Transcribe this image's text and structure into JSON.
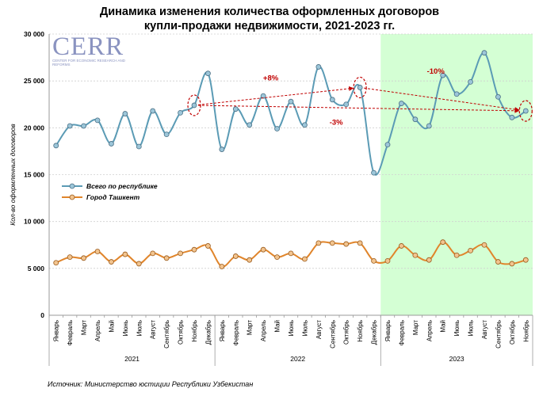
{
  "title_line1": "Динамика изменения количества оформленных договоров",
  "title_line2": "купли-продажи недвижимости, 2021-2023 гг.",
  "logo": {
    "name": "CERR",
    "subtitle": "CENTER FOR ECONOMIC RESEARCH AND REFORMS"
  },
  "source": "Источник: Министерство юстиции Республики Узбекистан",
  "colors": {
    "total": "#5b9bb5",
    "total_marker": "#9cc6d9",
    "tashkent": "#e0852b",
    "tashkent_marker": "#f2c48f",
    "highlight": "#ccffcc",
    "annot": "#c00000"
  },
  "chart_data": {
    "type": "line",
    "ylabel": "Кол-во оформленных договоров",
    "ylim": [
      0,
      30000
    ],
    "yticks": [
      0,
      5000,
      10000,
      15000,
      20000,
      25000,
      30000
    ],
    "ytick_labels": [
      "0",
      "5 000",
      "10 000",
      "15 000",
      "20 000",
      "25 000",
      "30 000"
    ],
    "months": [
      "Январь",
      "Февраль",
      "Март",
      "Апрель",
      "Май",
      "Июнь",
      "Июль",
      "Август",
      "Сентябрь",
      "Октябрь",
      "Ноябрь",
      "Декабрь",
      "Январь",
      "Февраль",
      "Март",
      "Апрель",
      "Май",
      "Июнь",
      "Июль",
      "Август",
      "Сентябрь",
      "Октябрь",
      "Ноябрь",
      "Декабрь",
      "Январь",
      "Февраль",
      "Март",
      "Апрель",
      "Май",
      "Июнь",
      "Июль",
      "Август",
      "Сентябрь",
      "Октябрь",
      "Ноябрь"
    ],
    "years": [
      {
        "label": "2021",
        "start": 0,
        "count": 12
      },
      {
        "label": "2022",
        "start": 12,
        "count": 12
      },
      {
        "label": "2023",
        "start": 24,
        "count": 11
      }
    ],
    "highlight_from": 24,
    "series": [
      {
        "name": "Всего по республике",
        "values": [
          18100,
          20200,
          20200,
          20800,
          18300,
          21500,
          18000,
          21800,
          19300,
          21600,
          22400,
          25800,
          17700,
          22000,
          20300,
          23400,
          19900,
          22800,
          20300,
          26500,
          23000,
          22500,
          24300,
          15200,
          18200,
          22600,
          20900,
          20200,
          25600,
          23600,
          24900,
          28000,
          23300,
          21100,
          21800
        ]
      },
      {
        "name": "Город Ташкент",
        "values": [
          5600,
          6200,
          6100,
          6800,
          5700,
          6500,
          5500,
          6600,
          6100,
          6600,
          7000,
          7400,
          5200,
          6300,
          5900,
          7000,
          6200,
          6600,
          6000,
          7700,
          7700,
          7600,
          7700,
          5800,
          5800,
          7400,
          6400,
          5900,
          7800,
          6400,
          6900,
          7500,
          5700,
          5500,
          5900
        ]
      }
    ],
    "annotations": [
      {
        "text": "+8%",
        "from_index": 10,
        "to_index": 22
      },
      {
        "text": "-10%",
        "from_index": 22,
        "to_index": 34
      },
      {
        "text": "-3%",
        "from_index": 10,
        "to_index": 34
      }
    ]
  }
}
